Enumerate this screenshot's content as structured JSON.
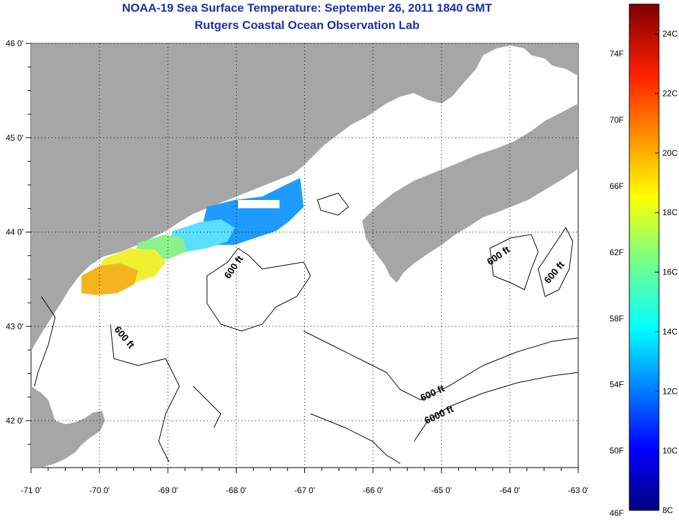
{
  "header": {
    "title": "NOAA-19 Sea Surface Temperature:  September 26, 2011 1840 GMT",
    "subtitle": "Rutgers Coastal Ocean Observation Lab"
  },
  "map": {
    "lon_labels": [
      "-71 0'",
      "-70 0'",
      "-69 0'",
      "-68 0'",
      "-67 0'",
      "-66 0'",
      "-65 0'",
      "-64 0'",
      "-63 0'"
    ],
    "lat_labels": [
      "46 0'",
      "45 0'",
      "44 0'",
      "43 0'",
      "42 0'"
    ],
    "lon_values": [
      -71,
      -70,
      -69,
      -68,
      -67,
      -66,
      -65,
      -64,
      -63
    ],
    "lat_values": [
      46,
      45,
      44,
      43,
      42
    ],
    "contour_labels": [
      "600 ft",
      "600 ft",
      "600 ft",
      "600 ft",
      "600 ft",
      "6000 ft"
    ],
    "colors": {
      "land": "#a6a6a6",
      "ocean": "#ffffff"
    }
  },
  "colorbar": {
    "fahrenheit_labels": [
      "74F",
      "70F",
      "66F",
      "62F",
      "58F",
      "54F",
      "50F",
      "46F"
    ],
    "celsius_labels": [
      "24C",
      "22C",
      "20C",
      "18C",
      "16C",
      "14C",
      "12C",
      "10C",
      "8C"
    ],
    "range_c": [
      8,
      25
    ]
  }
}
